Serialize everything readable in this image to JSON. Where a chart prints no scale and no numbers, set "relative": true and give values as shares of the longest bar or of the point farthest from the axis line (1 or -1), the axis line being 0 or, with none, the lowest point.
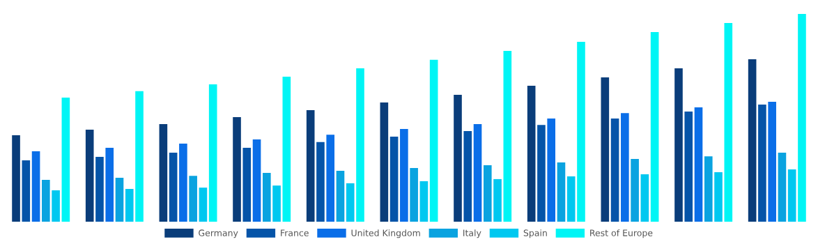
{
  "chart_data": {
    "type": "bar",
    "relative": true,
    "legend": "bottom",
    "grid": false,
    "categories": [
      null,
      null,
      null,
      null,
      null,
      null,
      null,
      null,
      null,
      null,
      null
    ],
    "series": [
      {
        "name": "Germany",
        "color": "#0a3d7a",
        "values": [
          0.416,
          0.443,
          0.47,
          0.503,
          0.537,
          0.574,
          0.611,
          0.654,
          0.695,
          0.738,
          0.782
        ]
      },
      {
        "name": "France",
        "color": "#0554a8",
        "values": [
          0.295,
          0.312,
          0.332,
          0.356,
          0.383,
          0.409,
          0.436,
          0.466,
          0.497,
          0.53,
          0.564
        ]
      },
      {
        "name": "United Kingdom",
        "color": "#0a6ee8",
        "values": [
          0.339,
          0.356,
          0.376,
          0.396,
          0.419,
          0.446,
          0.47,
          0.497,
          0.523,
          0.55,
          0.577
        ]
      },
      {
        "name": "Italy",
        "color": "#0aa3e0",
        "values": [
          0.201,
          0.211,
          0.221,
          0.235,
          0.245,
          0.258,
          0.272,
          0.285,
          0.302,
          0.315,
          0.332
        ]
      },
      {
        "name": "Spain",
        "color": "#00c8f0",
        "values": [
          0.151,
          0.158,
          0.164,
          0.174,
          0.185,
          0.195,
          0.205,
          0.218,
          0.228,
          0.238,
          0.252
        ]
      },
      {
        "name": "Rest of Europe",
        "color": "#00f5f5",
        "values": [
          0.597,
          0.628,
          0.661,
          0.698,
          0.738,
          0.779,
          0.822,
          0.866,
          0.913,
          0.956,
          1
        ]
      }
    ]
  }
}
